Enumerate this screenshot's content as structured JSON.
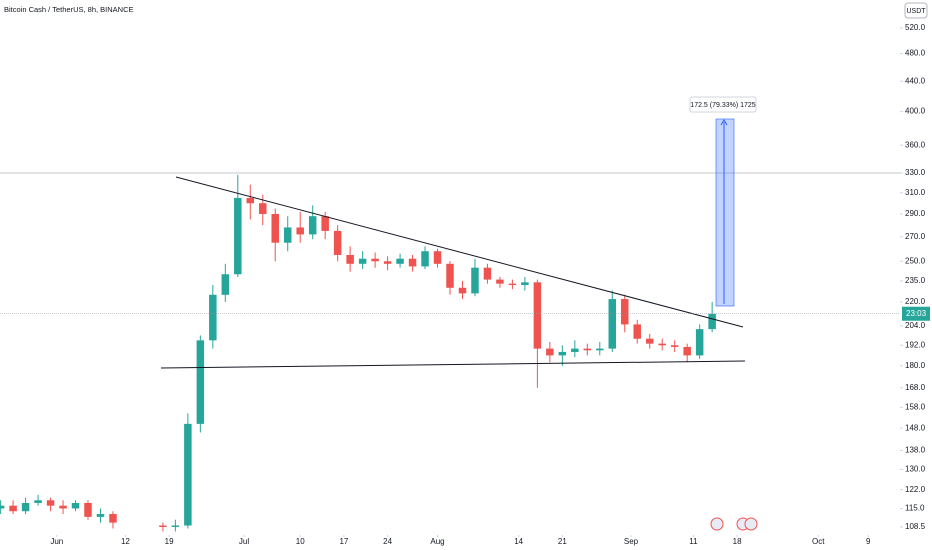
{
  "chart_data": {
    "type": "candlestick",
    "title": "Bitcoin Cash / TetherUS, 8h, BINANCE",
    "currency": "USDT",
    "countdown": "23:03",
    "measure_label": "172.5 (79.33%) 1725",
    "up_color": "#26a69a",
    "down_color": "#ef5350",
    "log_scale": true,
    "grid": false,
    "x": [
      -9,
      -7,
      -5,
      -3,
      -1,
      1,
      3,
      5,
      7,
      9,
      17,
      19,
      21,
      23,
      25,
      27,
      29,
      31,
      33,
      35,
      37,
      39,
      41,
      43,
      45,
      47,
      49,
      51,
      53,
      55,
      57,
      59,
      61,
      63,
      65,
      67,
      69,
      71,
      73,
      75,
      77,
      79,
      81,
      83,
      85,
      87,
      89,
      91,
      93,
      95,
      97,
      99,
      101,
      103,
      105
    ],
    "open": [
      115,
      116,
      114,
      117,
      118,
      116,
      115,
      117,
      112,
      113,
      109,
      108.5,
      109,
      150,
      195,
      225,
      240,
      305,
      300,
      290,
      265,
      278,
      272,
      288,
      275,
      255,
      248,
      252,
      250,
      248,
      252,
      246,
      258,
      248,
      230,
      226,
      245,
      236,
      233,
      232,
      234,
      190,
      186,
      188,
      190,
      189,
      190,
      222,
      205,
      196,
      193,
      192,
      191,
      186,
      202
    ],
    "high": [
      118,
      118,
      119,
      120,
      119,
      118,
      118,
      118,
      115,
      114,
      110,
      111,
      155,
      198,
      232,
      248,
      328,
      318,
      308,
      295,
      288,
      292,
      298,
      292,
      280,
      262,
      258,
      257,
      254,
      256,
      255,
      262,
      260,
      250,
      235,
      252,
      248,
      238,
      236,
      238,
      236,
      194,
      192,
      195,
      193,
      194,
      228,
      225,
      208,
      199,
      196,
      195,
      193,
      205,
      220
    ],
    "low": [
      113,
      113,
      113,
      116,
      114,
      113,
      114,
      111,
      110,
      108,
      107,
      107,
      108,
      146,
      190,
      220,
      238,
      285,
      280,
      250,
      258,
      265,
      268,
      268,
      250,
      242,
      244,
      245,
      243,
      245,
      242,
      244,
      245,
      225,
      222,
      224,
      233,
      230,
      229,
      228,
      168,
      182,
      180,
      185,
      186,
      186,
      188,
      200,
      193,
      190,
      189,
      188,
      182,
      184,
      200
    ],
    "close": [
      116,
      114,
      117,
      118,
      116,
      115,
      117,
      112,
      113,
      110,
      108.5,
      109,
      150,
      195,
      225,
      240,
      305,
      300,
      290,
      265,
      278,
      272,
      288,
      275,
      255,
      248,
      252,
      250,
      248,
      252,
      246,
      258,
      248,
      230,
      226,
      245,
      236,
      233,
      232,
      234,
      190,
      186,
      188,
      190,
      189,
      190,
      222,
      205,
      196,
      193,
      192,
      191,
      186,
      202,
      212
    ],
    "xlim": [
      -9.1,
      135.1
    ],
    "xticks": [
      {
        "value": 0,
        "label": "Jun"
      },
      {
        "value": 11,
        "label": "12"
      },
      {
        "value": 18,
        "label": "19"
      },
      {
        "value": 30,
        "label": "Jul"
      },
      {
        "value": 39,
        "label": "10"
      },
      {
        "value": 46,
        "label": "17"
      },
      {
        "value": 53,
        "label": "24"
      },
      {
        "value": 61,
        "label": "Aug"
      },
      {
        "value": 74,
        "label": "14"
      },
      {
        "value": 81,
        "label": "21"
      },
      {
        "value": 92,
        "label": "Sep"
      },
      {
        "value": 102,
        "label": "11"
      },
      {
        "value": 109,
        "label": "18"
      },
      {
        "value": 122,
        "label": "Oct"
      },
      {
        "value": 130,
        "label": "9"
      }
    ],
    "ylim": [
      105.8,
      568
    ],
    "yticks": [
      {
        "value": 108.5,
        "label": "108.5"
      },
      {
        "value": 115,
        "label": "115.0"
      },
      {
        "value": 122,
        "label": "122.0"
      },
      {
        "value": 130,
        "label": "130.0"
      },
      {
        "value": 138,
        "label": "138.0"
      },
      {
        "value": 148,
        "label": "148.0"
      },
      {
        "value": 158,
        "label": "158.0"
      },
      {
        "value": 168,
        "label": "168.0"
      },
      {
        "value": 180,
        "label": "180.0"
      },
      {
        "value": 192,
        "label": "192.0"
      },
      {
        "value": 204,
        "label": "204.0"
      },
      {
        "value": 220,
        "label": "220.0"
      },
      {
        "value": 235,
        "label": "235.0"
      },
      {
        "value": 250,
        "label": "250.0"
      },
      {
        "value": 270,
        "label": "270.0"
      },
      {
        "value": 290,
        "label": "290.0"
      },
      {
        "value": 310,
        "label": "310.0"
      },
      {
        "value": 330,
        "label": "330.0"
      },
      {
        "value": 360,
        "label": "360.0"
      },
      {
        "value": 400,
        "label": "400.0"
      },
      {
        "value": 440,
        "label": "440.0"
      },
      {
        "value": 480,
        "label": "480.0"
      },
      {
        "value": 520,
        "label": "520.0"
      }
    ]
  }
}
